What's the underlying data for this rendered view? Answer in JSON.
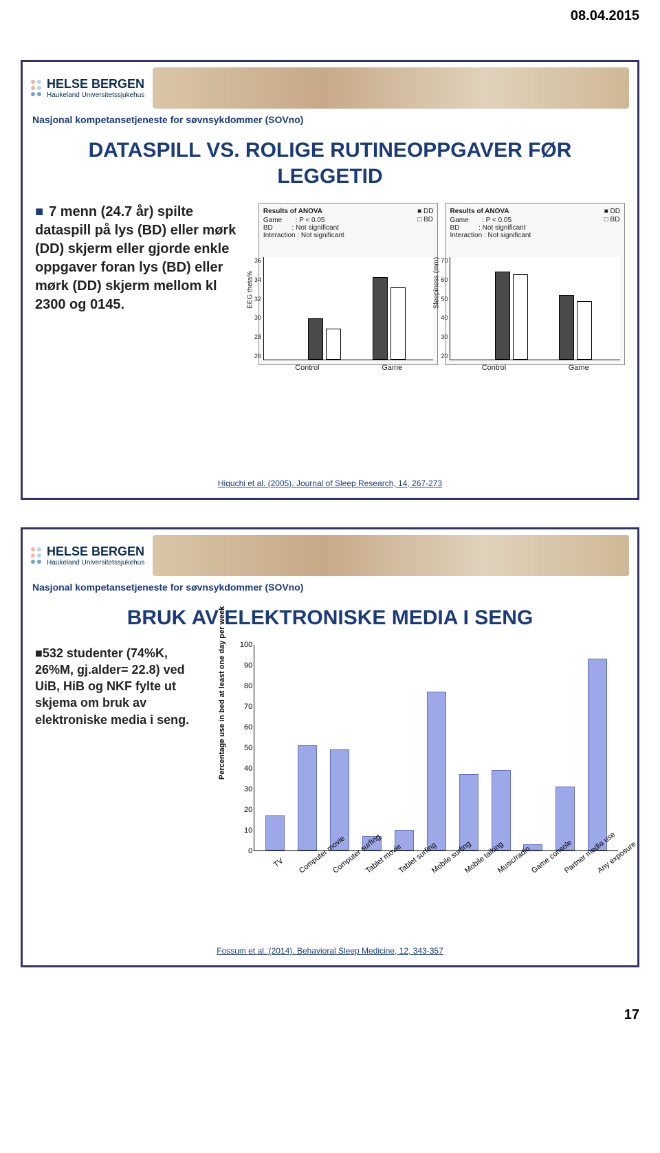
{
  "date": "08.04.2015",
  "page_number": "17",
  "logo": {
    "main": "HELSE BERGEN",
    "sub": "Haukeland Universitetssjukehus"
  },
  "sovno_line": "Nasjonal kompetansetjeneste for søvnsykdommer (SOVno)",
  "slide1": {
    "title": "DATASPILL VS. ROLIGE RUTINEOPPGAVER FØR LEGGETID",
    "bullet": "7 menn (24.7 år) spilte dataspill på lys (BD) eller mørk (DD) skjerm eller gjorde enkle oppgaver foran lys (BD) eller mørk (DD) skjerm mellom kl 2300 og 0145.",
    "citation": "Higuchi et al. (2005). Journal of Sleep Research, 14, 267-273",
    "panels": [
      {
        "anova_title": "Results of ANOVA",
        "anova_lines": [
          "Game       : P < 0.05",
          "BD          : Not significant",
          "Interaction : Not significant"
        ],
        "legend": [
          "■ DD",
          "□ BD"
        ],
        "ylabel": "EEG theta%",
        "ylim": [
          26,
          36
        ],
        "yticks": [
          "36",
          "34",
          "32",
          "30",
          "28",
          "26"
        ],
        "xticks": [
          "Control",
          "Game"
        ],
        "bars": [
          {
            "dd": 30,
            "bd": 29
          },
          {
            "dd": 34,
            "bd": 33
          }
        ],
        "bar_colors": {
          "dd": "#4a4a4a",
          "bd": "#ffffff"
        },
        "bg": "#f7f7f7"
      },
      {
        "anova_title": "Results of ANOVA",
        "anova_lines": [
          "Game       : P < 0.05",
          "BD          : Not significant",
          "Interaction : Not significant"
        ],
        "legend": [
          "■ DD",
          "□ BD"
        ],
        "ylabel": "Sleepiness (mm)",
        "ylim": [
          0,
          70
        ],
        "yticks": [
          "70",
          "60",
          "50",
          "40",
          "30",
          "20"
        ],
        "xticks": [
          "Control",
          "Game"
        ],
        "bars": [
          {
            "dd": 60,
            "bd": 58
          },
          {
            "dd": 44,
            "bd": 40
          }
        ],
        "bar_colors": {
          "dd": "#4a4a4a",
          "bd": "#ffffff"
        },
        "bg": "#f7f7f7"
      }
    ]
  },
  "slide2": {
    "title": "BRUK AV ELEKTRONISKE MEDIA I SENG",
    "bullet": "532 studenter (74%K, 26%M, gj.alder= 22.8) ved UiB, HiB og NKF fylte ut skjema om bruk av elektroniske media i seng.",
    "citation": "Fossum et al. (2014). Behavioral Sleep Medicine, 12, 343-357",
    "chart": {
      "type": "bar",
      "ylabel": "Percentage use in bed at least one day per week",
      "ylim": [
        0,
        100
      ],
      "ytick_step": 10,
      "yticks": [
        "100",
        "90",
        "80",
        "70",
        "60",
        "50",
        "40",
        "30",
        "20",
        "10",
        "0"
      ],
      "categories": [
        "TV",
        "Computer movie",
        "Computer surfing",
        "Tablet movie",
        "Tablet surfing",
        "Mobile surfing",
        "Mobile talking",
        "Music/radio",
        "Game console",
        "Partner media use",
        "Any exposure"
      ],
      "values": [
        17,
        51,
        49,
        7,
        10,
        77,
        37,
        39,
        3,
        31,
        93
      ],
      "bar_color": "#9da8e8",
      "bar_border": "#6070c0",
      "background": "#ffffff",
      "axis_color": "#000000",
      "label_fontsize": 11
    }
  }
}
